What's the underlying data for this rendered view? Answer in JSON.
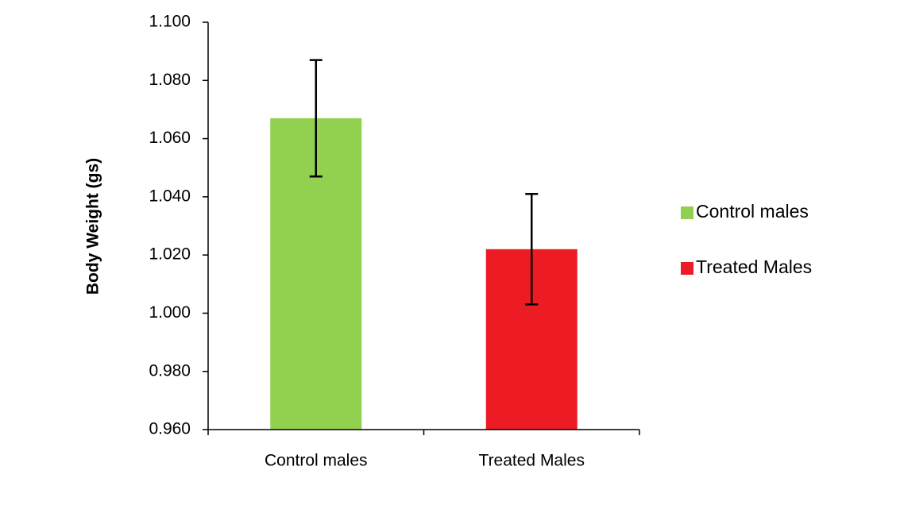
{
  "chart_data": {
    "type": "bar",
    "y_label": "Body Weight (gs)",
    "categories": [
      "Control males",
      "Treated Males"
    ],
    "series": [
      {
        "name": "Control males",
        "color": "#92d050",
        "values": [
          1.067,
          null
        ],
        "errors": [
          0.02,
          null
        ]
      },
      {
        "name": "Treated Males",
        "color": "#ed1c24",
        "values": [
          null,
          1.022
        ],
        "errors": [
          null,
          0.019
        ]
      }
    ],
    "ylim": [
      0.96,
      1.1
    ],
    "yticks": [
      {
        "value": 0.96,
        "label": "0.960"
      },
      {
        "value": 0.98,
        "label": "0.980"
      },
      {
        "value": 1.0,
        "label": "1.000"
      },
      {
        "value": 1.02,
        "label": "1.020"
      },
      {
        "value": 1.04,
        "label": "1.040"
      },
      {
        "value": 1.06,
        "label": "1.060"
      },
      {
        "value": 1.08,
        "label": "1.080"
      },
      {
        "value": 1.1,
        "label": "1.100"
      }
    ],
    "grid": false,
    "legend": "right"
  }
}
